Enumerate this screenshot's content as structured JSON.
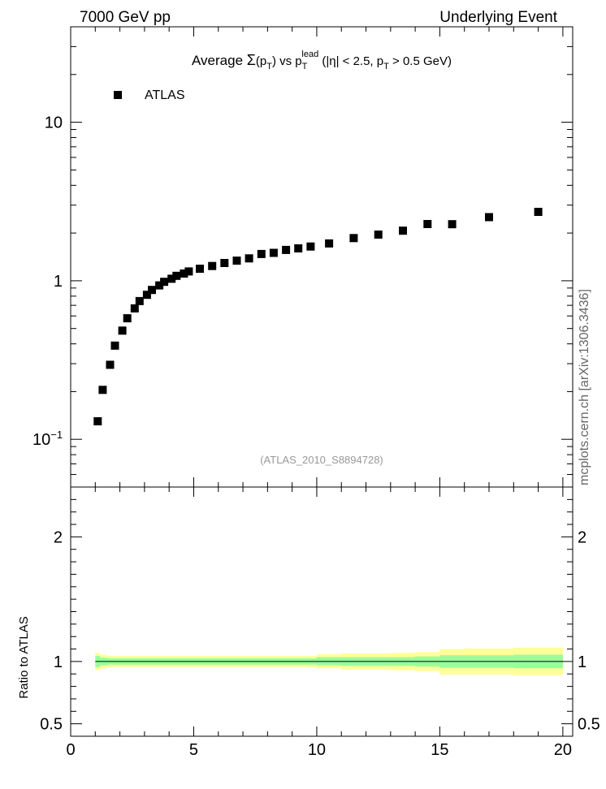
{
  "header": {
    "left": "7000 GeV pp",
    "right": "Underlying Event"
  },
  "side_label": "mcplots.cern.ch [arXiv:1306.3436]",
  "chart_data": {
    "type": "scatter",
    "title": {
      "prefix": "Average ",
      "sigma": "Σ",
      "p1": "(p",
      "sub1": "T",
      "p2": ") vs p",
      "sub2": "T",
      "sup2": "lead",
      "p3": " (|η| < 2.5, p",
      "sub3": "T",
      "p4": " > 0.5 GeV)"
    },
    "analysis_id": "(ATLAS_2010_S8894728)",
    "legend": {
      "placement": "top-left",
      "entries": [
        "ATLAS"
      ]
    },
    "marker": "square",
    "xlim": [
      0,
      20.4
    ],
    "ylim": [
      0.05,
      40
    ],
    "yscale": "log",
    "x_ticks": [
      "0",
      "5",
      "10",
      "15",
      "20"
    ],
    "y_ticks": [
      {
        "value": 10,
        "label": "10"
      },
      {
        "value": 1,
        "label": "1"
      },
      {
        "value": 0.1,
        "label": "10",
        "sup": "−1"
      }
    ],
    "series": [
      {
        "name": "ATLAS",
        "x": [
          1.1,
          1.3,
          1.6,
          1.8,
          2.1,
          2.3,
          2.6,
          2.8,
          3.1,
          3.3,
          3.6,
          3.8,
          4.1,
          4.3,
          4.6,
          4.8,
          5.25,
          5.75,
          6.25,
          6.75,
          7.25,
          7.75,
          8.25,
          8.75,
          9.25,
          9.75,
          10.5,
          11.5,
          12.5,
          13.5,
          14.5,
          15.5,
          17.0,
          19.0
        ],
        "y": [
          0.13,
          0.205,
          0.295,
          0.39,
          0.485,
          0.58,
          0.67,
          0.745,
          0.815,
          0.875,
          0.935,
          0.985,
          1.03,
          1.075,
          1.11,
          1.145,
          1.19,
          1.24,
          1.295,
          1.34,
          1.385,
          1.475,
          1.5,
          1.565,
          1.6,
          1.645,
          1.72,
          1.86,
          1.955,
          2.07,
          2.28,
          2.275,
          2.52,
          2.72
        ]
      }
    ],
    "ratio_panel": {
      "ylabel": "Ratio to ATLAS",
      "ylim": [
        0.4,
        2.4
      ],
      "y_ticks": [
        "0.5",
        "1",
        "2"
      ],
      "inner_band": {
        "color": "#99ff99",
        "x": [
          1.0,
          1.2,
          1.5,
          2.0,
          3.0,
          4.0,
          5.0,
          6.0,
          7.0,
          8.0,
          9.0,
          10.0,
          11.0,
          12.0,
          13.0,
          14.0,
          15.0,
          16.0,
          18.0,
          20.0
        ],
        "low": [
          0.955,
          0.97,
          0.975,
          0.975,
          0.975,
          0.975,
          0.975,
          0.975,
          0.975,
          0.975,
          0.975,
          0.97,
          0.965,
          0.965,
          0.965,
          0.96,
          0.95,
          0.95,
          0.945,
          0.945
        ],
        "high": [
          1.045,
          1.03,
          1.025,
          1.025,
          1.025,
          1.025,
          1.025,
          1.025,
          1.025,
          1.025,
          1.025,
          1.035,
          1.035,
          1.035,
          1.035,
          1.04,
          1.05,
          1.05,
          1.055,
          1.055
        ]
      },
      "outer_band": {
        "color": "#ffff99",
        "x": [
          1.0,
          1.2,
          1.5,
          2.0,
          3.0,
          4.0,
          5.0,
          6.0,
          7.0,
          8.0,
          9.0,
          10.0,
          11.0,
          12.0,
          13.0,
          14.0,
          15.0,
          16.0,
          18.0,
          20.0
        ],
        "low": [
          0.93,
          0.945,
          0.955,
          0.955,
          0.955,
          0.955,
          0.955,
          0.955,
          0.955,
          0.955,
          0.955,
          0.945,
          0.935,
          0.935,
          0.93,
          0.925,
          0.895,
          0.895,
          0.89,
          0.89
        ],
        "high": [
          1.07,
          1.055,
          1.045,
          1.045,
          1.045,
          1.045,
          1.045,
          1.045,
          1.045,
          1.045,
          1.045,
          1.06,
          1.065,
          1.065,
          1.07,
          1.075,
          1.1,
          1.105,
          1.11,
          1.11
        ]
      },
      "reference_line": 1
    }
  }
}
